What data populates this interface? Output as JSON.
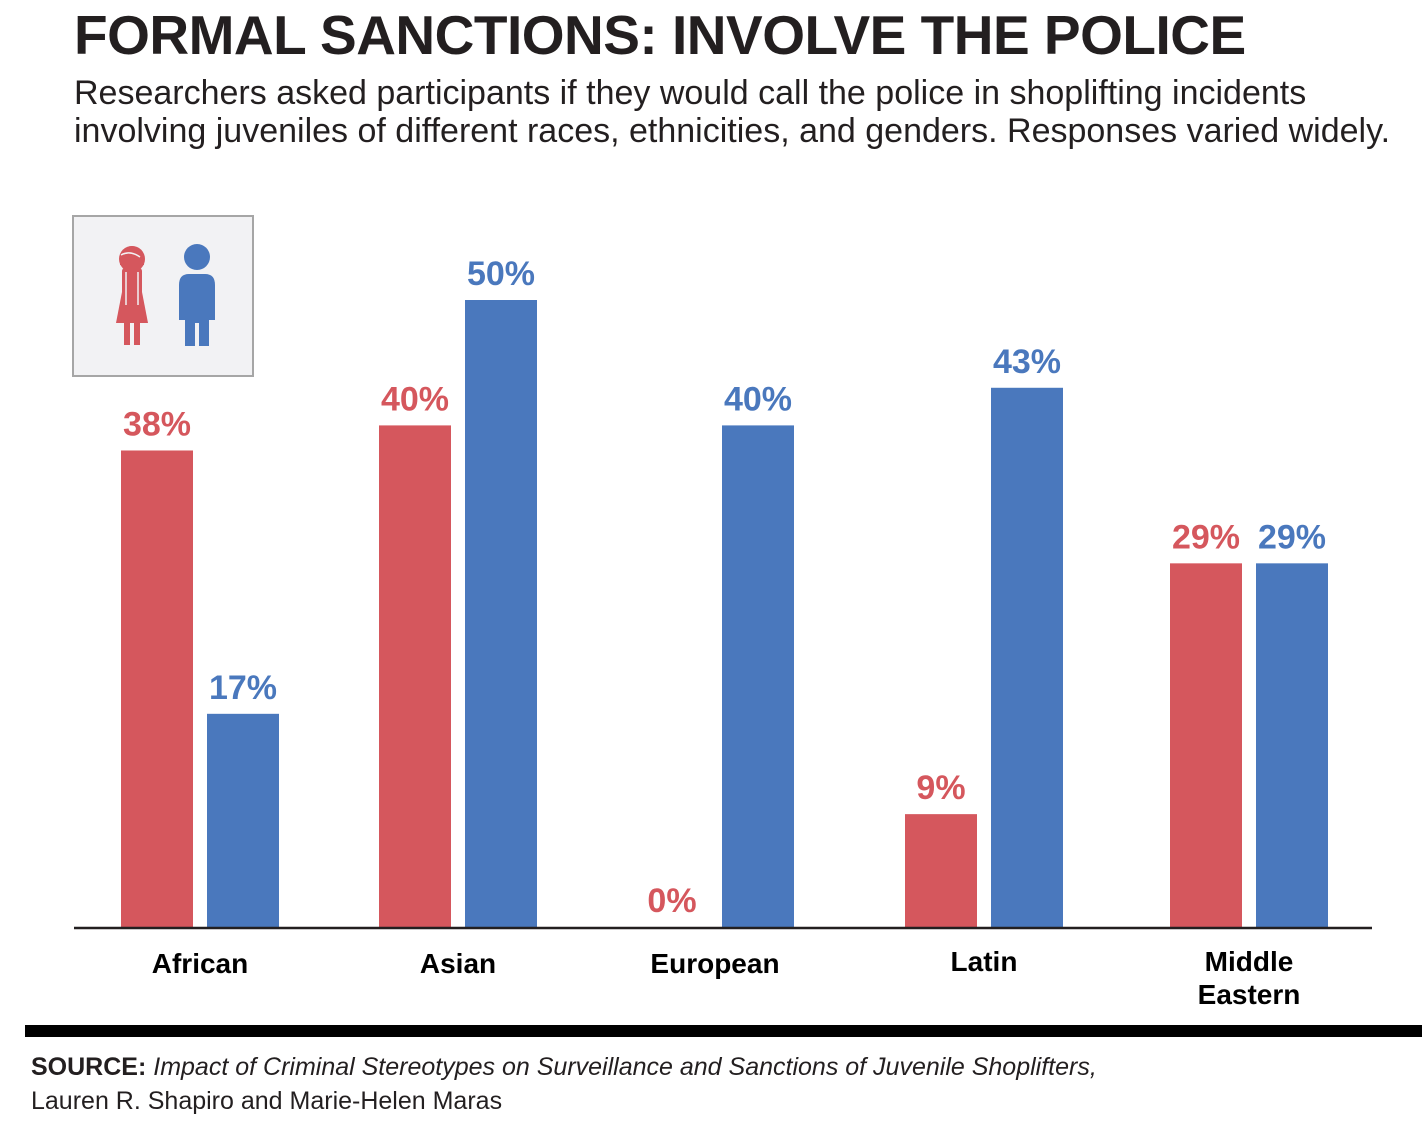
{
  "header": {
    "title": "FORMAL SANCTIONS: INVOLVE THE POLICE",
    "subtitle": "Researchers asked participants if they would call the police in shoplifting incidents involving juveniles of different races, ethnicities, and genders. Responses varied widely."
  },
  "legend": {
    "items": [
      {
        "name": "Female",
        "icon": "female-figure-icon",
        "color": "#d5575d"
      },
      {
        "name": "Male",
        "icon": "male-figure-icon",
        "color": "#4a78bd"
      }
    ]
  },
  "colors": {
    "female": "#d5575d",
    "male": "#4a78bd",
    "axis": "#231f20"
  },
  "chart_data": {
    "type": "bar",
    "title": "FORMAL SANCTIONS: INVOLVE THE POLICE",
    "xlabel": "",
    "ylabel": "",
    "ylim": [
      0,
      50
    ],
    "grid": false,
    "legend": "top-left",
    "categories": [
      "African",
      "Asian",
      "European",
      "Latin",
      "Middle Eastern"
    ],
    "category_lines": [
      [
        "African"
      ],
      [
        "Asian"
      ],
      [
        "European"
      ],
      [
        "Latin"
      ],
      [
        "Middle",
        "Eastern"
      ]
    ],
    "series": [
      {
        "name": "Female",
        "color": "#d5575d",
        "values": [
          38,
          40,
          0,
          9,
          29
        ],
        "labels": [
          "38%",
          "40%",
          "0%",
          "9%",
          "29%"
        ]
      },
      {
        "name": "Male",
        "color": "#4a78bd",
        "values": [
          17,
          50,
          40,
          43,
          29
        ],
        "labels": [
          "17%",
          "50%",
          "40%",
          "43%",
          "29%"
        ]
      }
    ]
  },
  "source": {
    "label": "SOURCE:",
    "title": "Impact of Criminal Stereotypes on Surveillance and Sanctions of Juvenile Shoplifters,",
    "authors": "Lauren R. Shapiro and Marie-Helen Maras"
  }
}
